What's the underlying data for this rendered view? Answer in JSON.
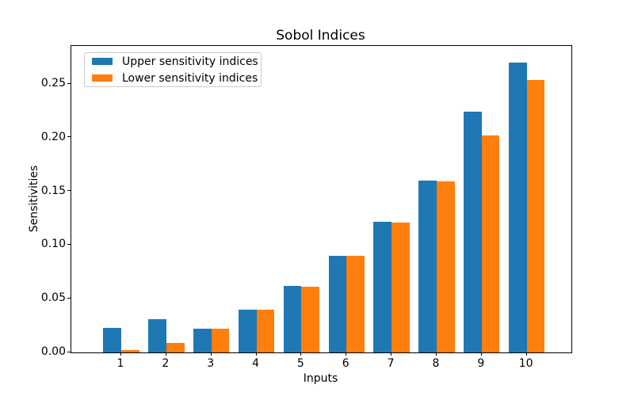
{
  "window": {
    "background_color": "#ffffff"
  },
  "chart_data": {
    "type": "bar",
    "title": "Sobol Indices",
    "xlabel": "Inputs",
    "ylabel": "Sensitivities",
    "categories": [
      "1",
      "2",
      "3",
      "4",
      "5",
      "6",
      "7",
      "8",
      "9",
      "10"
    ],
    "series": [
      {
        "name": "Upper sensitivity indices",
        "color": "#1f77b4",
        "values": [
          0.023,
          0.031,
          0.022,
          0.04,
          0.062,
          0.09,
          0.122,
          0.16,
          0.224,
          0.27
        ]
      },
      {
        "name": "Lower sensitivity indices",
        "color": "#ff7f0e",
        "values": [
          0.002,
          0.009,
          0.022,
          0.04,
          0.061,
          0.09,
          0.121,
          0.159,
          0.202,
          0.254
        ]
      }
    ],
    "yticks": [
      0.0,
      0.05,
      0.1,
      0.15,
      0.2,
      0.25
    ],
    "ytick_labels": [
      "0.00",
      "0.05",
      "0.10",
      "0.15",
      "0.20",
      "0.25"
    ],
    "ylim": [
      0,
      0.285
    ],
    "grid": false,
    "legend_position": "upper left",
    "spine_color": "#000000",
    "legend_border_color": "#cccccc"
  }
}
